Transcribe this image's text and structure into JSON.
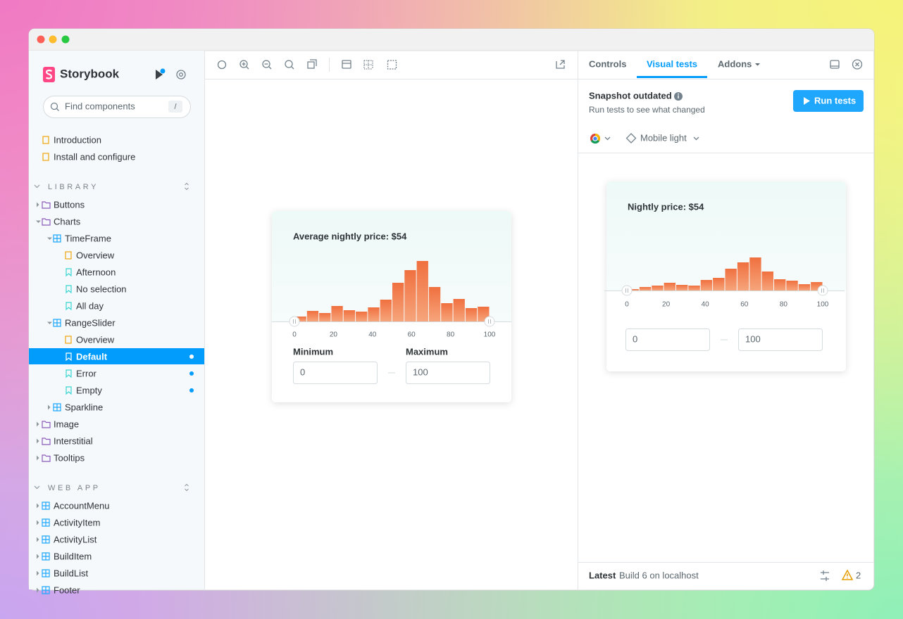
{
  "sidebar": {
    "brand": "Storybook",
    "search_placeholder": "Find components",
    "search_shortcut": "/",
    "docs": [
      "Introduction",
      "Install and configure"
    ],
    "library": {
      "heading": "LIBRARY",
      "items": [
        "Buttons",
        "Charts",
        "TimeFrame",
        "Overview",
        "Afternoon",
        "No selection",
        "All day",
        "RangeSlider",
        "Overview",
        "Default",
        "Error",
        "Empty",
        "Sparkline",
        "Image",
        "Interstitial",
        "Tooltips"
      ]
    },
    "web_app": {
      "heading": "WEB APP",
      "items": [
        "AccountMenu",
        "ActivityItem",
        "ActivityList",
        "BuildItem",
        "BuildList",
        "Footer"
      ]
    }
  },
  "preview": {
    "title": "Average nightly price: $54",
    "min_label": "Minimum",
    "max_label": "Maximum",
    "bins": [
      0,
      6.25,
      12.5,
      18.75,
      25,
      31.25,
      37.5,
      43.75,
      50,
      56.25,
      62.5,
      68.75,
      75,
      81.25,
      87.5,
      93.75,
      100
    ],
    "counts": [
      7,
      15,
      12,
      22,
      16,
      14,
      20,
      31,
      55,
      73,
      86,
      49,
      26,
      32,
      19,
      21
    ],
    "xlim": [
      0,
      100
    ],
    "xticks": [
      0,
      20,
      40,
      60,
      80,
      100
    ],
    "min_value": 0,
    "max_value": 100
  },
  "panel": {
    "tabs": [
      "Controls",
      "Visual tests",
      "Addons"
    ],
    "status_title": "Snapshot outdated",
    "status_text": "Run tests to see what changed",
    "run_button": "Run tests",
    "mode": "Mobile light",
    "footer_label": "Latest",
    "footer_text": "Build 6 on localhost",
    "warnings": 2,
    "snapshot": {
      "title": "Nightly price: $54",
      "bins": [
        0,
        6.25,
        12.5,
        18.75,
        25,
        31.25,
        37.5,
        43.75,
        50,
        56.25,
        62.5,
        68.75,
        75,
        81.25,
        87.5,
        93.75,
        100
      ],
      "counts": [
        2,
        5,
        7,
        11,
        8,
        7,
        15,
        18,
        31,
        40,
        47,
        27,
        16,
        14,
        9,
        12
      ],
      "xlim": [
        0,
        100
      ],
      "xticks": [
        0,
        20,
        40,
        60,
        80,
        100
      ],
      "min_value": 0,
      "max_value": 100
    }
  }
}
